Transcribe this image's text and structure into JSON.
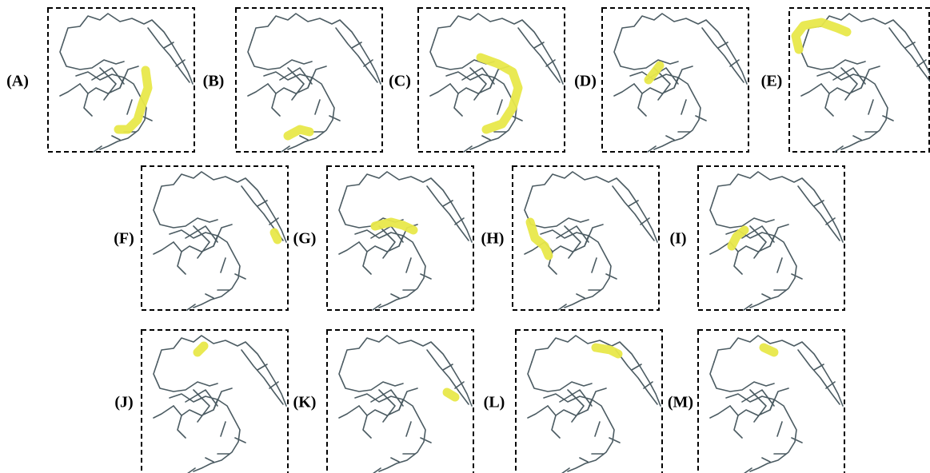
{
  "panels": [
    {
      "label": "(A)"
    },
    {
      "label": "(B)"
    },
    {
      "label": "(C)"
    },
    {
      "label": "(D)"
    },
    {
      "label": "(E)"
    },
    {
      "label": "(F)"
    },
    {
      "label": "(G)"
    },
    {
      "label": "(H)"
    },
    {
      "label": "(I)"
    },
    {
      "label": "(J)"
    },
    {
      "label": "(K)"
    },
    {
      "label": "(L)"
    },
    {
      "label": "(M)"
    }
  ]
}
